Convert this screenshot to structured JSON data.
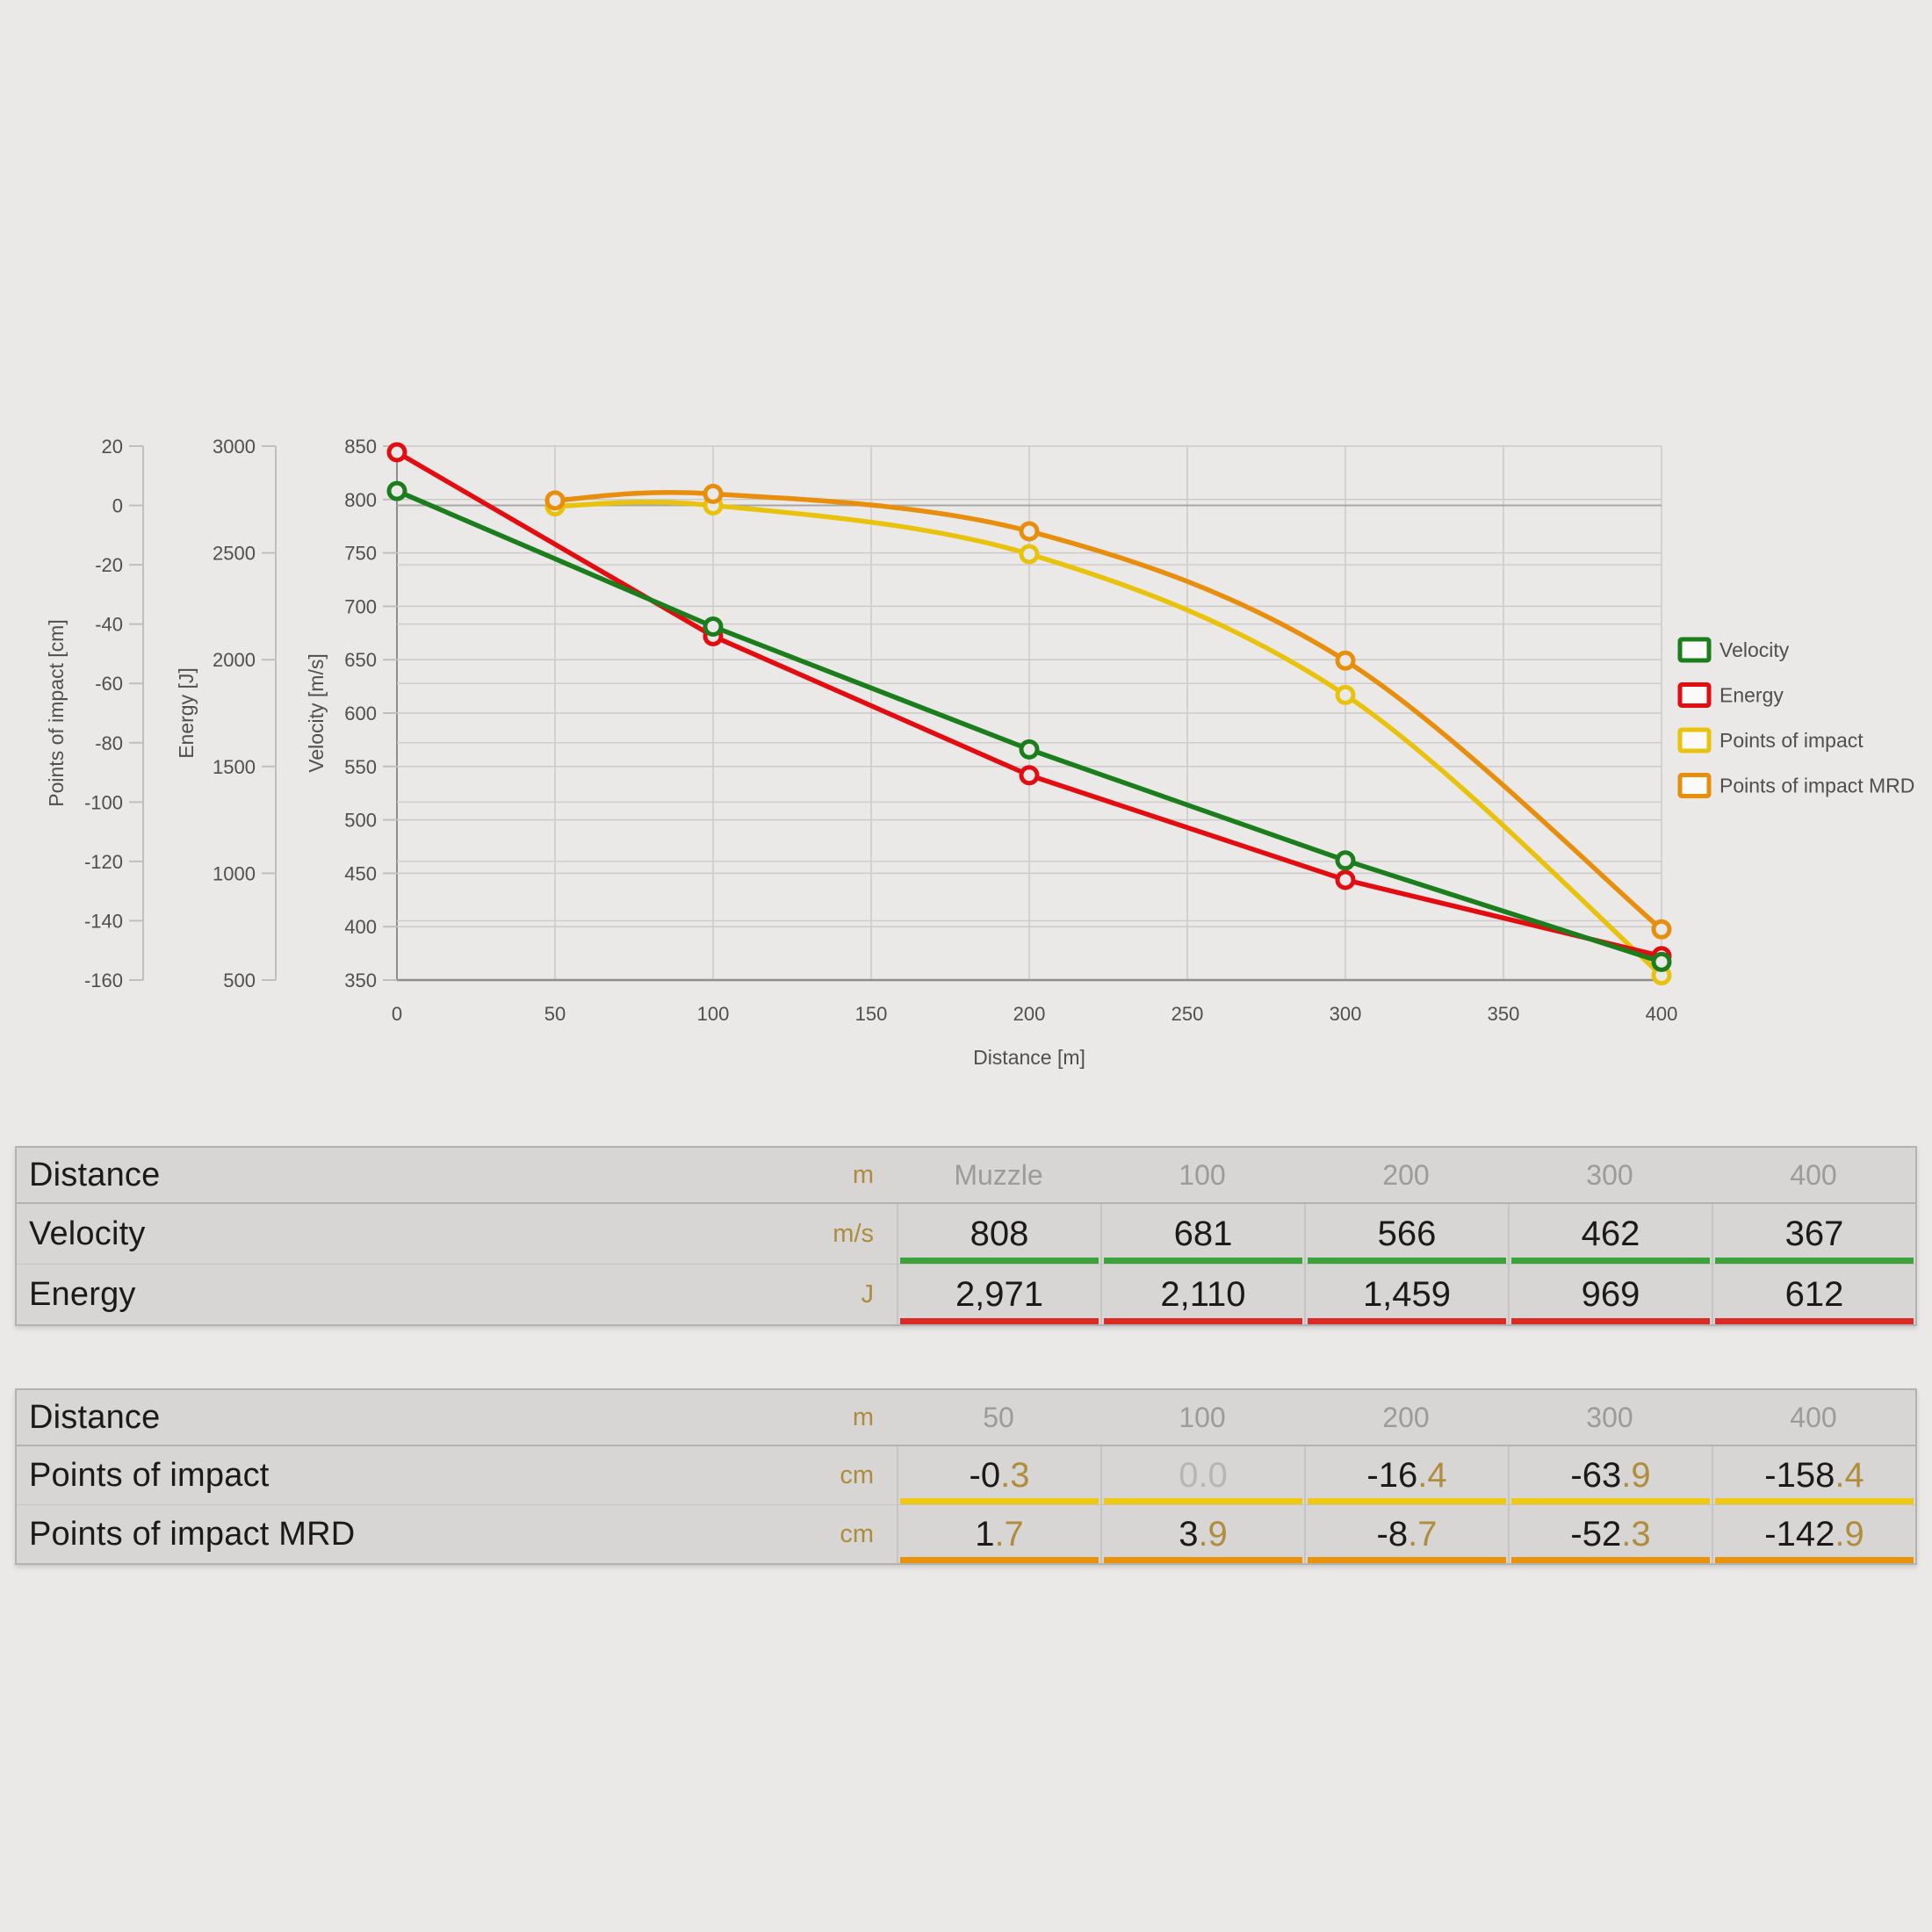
{
  "page": {
    "background": "#eae9e7"
  },
  "chart_data": {
    "type": "line",
    "x_axis": {
      "label": "Distance [m]",
      "min": 0,
      "max": 400,
      "ticks": [
        0,
        50,
        100,
        150,
        200,
        250,
        300,
        350,
        400
      ]
    },
    "y_axes": [
      {
        "id": "poi",
        "label": "Points of impact [cm]",
        "min": -160,
        "max": 20,
        "tick_step": 20
      },
      {
        "id": "energy",
        "label": "Energy [J]",
        "min": 500,
        "max": 3000,
        "tick_step": 500
      },
      {
        "id": "velocity",
        "label": "Velocity [m/s]",
        "min": 350,
        "max": 850,
        "tick_step": 50
      }
    ],
    "grid": true,
    "series": [
      {
        "name": "Velocity",
        "axis": "velocity",
        "color": "#1b7d1b",
        "smooth": false,
        "x": [
          0,
          100,
          200,
          300,
          400
        ],
        "y": [
          808,
          681,
          566,
          462,
          367
        ]
      },
      {
        "name": "Energy",
        "axis": "energy",
        "color": "#e30d11",
        "smooth": false,
        "x": [
          0,
          100,
          200,
          300,
          400
        ],
        "y": [
          2971,
          2110,
          1459,
          969,
          612
        ]
      },
      {
        "name": "Points of impact",
        "axis": "poi",
        "color": "#e9c20b",
        "smooth": true,
        "x": [
          50,
          100,
          200,
          300,
          400
        ],
        "y": [
          -0.3,
          0.0,
          -16.4,
          -63.9,
          -158.4
        ]
      },
      {
        "name": "Points of impact MRD",
        "axis": "poi",
        "color": "#e78f0d",
        "smooth": true,
        "x": [
          50,
          100,
          200,
          300,
          400
        ],
        "y": [
          1.7,
          3.9,
          -8.7,
          -52.3,
          -142.9
        ]
      }
    ],
    "legend": {
      "position": "right",
      "items": [
        {
          "label": "Velocity",
          "color": "#1b7d1b"
        },
        {
          "label": "Energy",
          "color": "#e30d11"
        },
        {
          "label": "Points of impact",
          "color": "#e9c20b"
        },
        {
          "label": "Points of impact MRD",
          "color": "#e78f0d"
        }
      ]
    }
  },
  "tables": {
    "first": {
      "header": {
        "label": "Distance",
        "unit": "m",
        "cols": [
          "Muzzle",
          "100",
          "200",
          "300",
          "400"
        ]
      },
      "rows": [
        {
          "label": "Velocity",
          "unit": "m/s",
          "underline": "#3aa33a",
          "values": [
            "808",
            "681",
            "566",
            "462",
            "367"
          ]
        },
        {
          "label": "Energy",
          "unit": "J",
          "underline": "#da2b27",
          "values": [
            "2,971",
            "2,110",
            "1,459",
            "969",
            "612"
          ]
        }
      ]
    },
    "second": {
      "header": {
        "label": "Distance",
        "unit": "m",
        "cols": [
          "50",
          "100",
          "200",
          "300",
          "400"
        ]
      },
      "rows": [
        {
          "label": "Points of impact",
          "unit": "cm",
          "underline": "#eec90f",
          "values": [
            {
              "int": "-0",
              "dec": ".3"
            },
            {
              "int": "0",
              "dec": ".0",
              "muted": true
            },
            {
              "int": "-16",
              "dec": ".4"
            },
            {
              "int": "-63",
              "dec": ".9"
            },
            {
              "int": "-158",
              "dec": ".4"
            }
          ]
        },
        {
          "label": "Points of impact MRD",
          "unit": "cm",
          "underline": "#e8930b",
          "values": [
            {
              "int": "1",
              "dec": ".7"
            },
            {
              "int": "3",
              "dec": ".9"
            },
            {
              "int": "-8",
              "dec": ".7"
            },
            {
              "int": "-52",
              "dec": ".3"
            },
            {
              "int": "-142",
              "dec": ".9"
            }
          ]
        }
      ]
    }
  }
}
